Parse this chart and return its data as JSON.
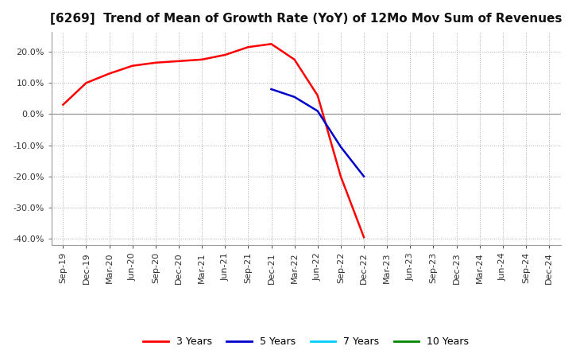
{
  "title": "[6269]  Trend of Mean of Growth Rate (YoY) of 12Mo Mov Sum of Revenues",
  "background_color": "#ffffff",
  "plot_bg_color": "#ffffff",
  "grid_color": "#aaaaaa",
  "xlim_start": 0,
  "xlim_end": 21,
  "ylim": [
    -0.42,
    0.265
  ],
  "yticks": [
    -0.4,
    -0.3,
    -0.2,
    -0.1,
    0.0,
    0.1,
    0.2
  ],
  "x_labels": [
    "Sep-19",
    "Dec-19",
    "Mar-20",
    "Jun-20",
    "Sep-20",
    "Dec-20",
    "Mar-21",
    "Jun-21",
    "Sep-21",
    "Dec-21",
    "Mar-22",
    "Jun-22",
    "Sep-22",
    "Dec-22",
    "Mar-23",
    "Jun-23",
    "Sep-23",
    "Dec-23",
    "Mar-24",
    "Jun-24",
    "Sep-24",
    "Dec-24"
  ],
  "series_3y": {
    "label": "3 Years",
    "color": "#ff0000",
    "x": [
      0,
      1,
      2,
      3,
      4,
      5,
      6,
      7,
      8,
      9,
      10,
      11,
      12,
      13
    ],
    "y": [
      0.03,
      0.1,
      0.13,
      0.155,
      0.165,
      0.17,
      0.175,
      0.19,
      0.215,
      0.225,
      0.175,
      0.06,
      -0.2,
      -0.395
    ]
  },
  "series_5y": {
    "label": "5 Years",
    "color": "#0000cc",
    "x": [
      9,
      10,
      11,
      12,
      13
    ],
    "y": [
      0.08,
      0.055,
      0.01,
      -0.105,
      -0.2
    ]
  },
  "series_7y": {
    "label": "7 Years",
    "color": "#00ccff",
    "x": [],
    "y": []
  },
  "series_10y": {
    "label": "10 Years",
    "color": "#008800",
    "x": [],
    "y": []
  },
  "legend_colors": [
    "#ff0000",
    "#0000cc",
    "#00ccff",
    "#008800"
  ],
  "legend_labels": [
    "3 Years",
    "5 Years",
    "7 Years",
    "10 Years"
  ],
  "title_fontsize": 11,
  "tick_fontsize": 8,
  "legend_fontsize": 9
}
